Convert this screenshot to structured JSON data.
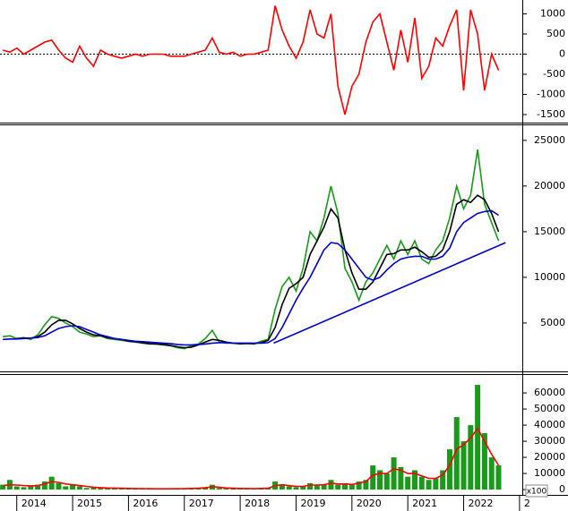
{
  "chart_data": [
    {
      "type": "line",
      "xlim": [
        2013.7,
        2023.05
      ],
      "ylim": [
        -1700,
        1300
      ],
      "yticks": [
        1000,
        500,
        0,
        -500,
        -1000,
        -1500
      ],
      "ref_line": 0,
      "x": [
        2013.75,
        2013.875,
        2014,
        2014.125,
        2014.25,
        2014.375,
        2014.5,
        2014.625,
        2014.75,
        2014.875,
        2015,
        2015.125,
        2015.25,
        2015.375,
        2015.5,
        2015.625,
        2015.75,
        2015.875,
        2016,
        2016.125,
        2016.25,
        2016.375,
        2016.5,
        2016.625,
        2016.75,
        2016.875,
        2017,
        2017.125,
        2017.25,
        2017.375,
        2017.5,
        2017.625,
        2017.75,
        2017.875,
        2018,
        2018.125,
        2018.25,
        2018.375,
        2018.5,
        2018.625,
        2018.75,
        2018.875,
        2019,
        2019.125,
        2019.25,
        2019.375,
        2019.5,
        2019.625,
        2019.75,
        2019.875,
        2020,
        2020.125,
        2020.25,
        2020.375,
        2020.5,
        2020.625,
        2020.75,
        2020.875,
        2021,
        2021.125,
        2021.25,
        2021.375,
        2021.5,
        2021.625,
        2021.75,
        2021.875,
        2022,
        2022.125,
        2022.25,
        2022.375,
        2022.5,
        2022.625
      ],
      "series": [
        {
          "color": "#ff0000",
          "values": [
            100,
            50,
            150,
            0,
            100,
            200,
            300,
            350,
            100,
            -100,
            -200,
            200,
            -100,
            -300,
            100,
            0,
            -50,
            -100,
            -50,
            0,
            -50,
            0,
            0,
            0,
            -50,
            -50,
            -50,
            0,
            50,
            100,
            400,
            50,
            0,
            50,
            -50,
            0,
            0,
            50,
            100,
            1200,
            600,
            200,
            -100,
            300,
            1100,
            500,
            400,
            1000,
            -800,
            -1500,
            -800,
            -500,
            300,
            800,
            1000,
            300,
            -400,
            600,
            -200,
            900,
            -600,
            -300,
            400,
            200,
            700,
            1100,
            -900,
            1100,
            500,
            -900,
            0,
            -400
          ]
        }
      ]
    },
    {
      "type": "line",
      "xlim": [
        2013.7,
        2023.05
      ],
      "ylim": [
        -300,
        26750
      ],
      "yticks": [
        5000,
        10000,
        15000,
        20000,
        25000
      ],
      "x": [
        2013.75,
        2013.875,
        2014,
        2014.125,
        2014.25,
        2014.375,
        2014.5,
        2014.625,
        2014.75,
        2014.875,
        2015,
        2015.125,
        2015.25,
        2015.375,
        2015.5,
        2015.625,
        2015.75,
        2015.875,
        2016,
        2016.125,
        2016.25,
        2016.375,
        2016.5,
        2016.625,
        2016.75,
        2016.875,
        2017,
        2017.125,
        2017.25,
        2017.375,
        2017.5,
        2017.625,
        2017.75,
        2017.875,
        2018,
        2018.125,
        2018.25,
        2018.375,
        2018.5,
        2018.625,
        2018.75,
        2018.875,
        2019,
        2019.125,
        2019.25,
        2019.375,
        2019.5,
        2019.625,
        2019.75,
        2019.875,
        2020,
        2020.125,
        2020.25,
        2020.375,
        2020.5,
        2020.625,
        2020.75,
        2020.875,
        2021,
        2021.125,
        2021.25,
        2021.375,
        2021.5,
        2021.625,
        2021.75,
        2021.875,
        2022,
        2022.125,
        2022.25,
        2022.375,
        2022.5,
        2022.625
      ],
      "series": [
        {
          "color": "#1a9a1a",
          "values": [
            3500,
            3600,
            3300,
            3400,
            3200,
            3700,
            4800,
            5700,
            5500,
            5000,
            4600,
            4000,
            3800,
            3500,
            3600,
            3300,
            3200,
            3100,
            3000,
            2900,
            2800,
            2700,
            2700,
            2600,
            2500,
            2300,
            2200,
            2500,
            2700,
            3300,
            4200,
            2900,
            2800,
            2800,
            2700,
            2800,
            2700,
            3000,
            3200,
            6500,
            9000,
            10000,
            8500,
            11000,
            15000,
            14000,
            16500,
            20000,
            17000,
            11000,
            9500,
            7500,
            9500,
            10500,
            12000,
            13500,
            12000,
            14000,
            12500,
            14000,
            12000,
            11500,
            13000,
            14000,
            16500,
            20000,
            17500,
            19000,
            24000,
            18000,
            16000,
            14000
          ]
        },
        {
          "color": "#000000",
          "values": [
            null,
            null,
            3300,
            3350,
            3350,
            3500,
            4000,
            4800,
            5300,
            5300,
            4900,
            4400,
            4000,
            3700,
            3600,
            3400,
            3300,
            3200,
            3000,
            2950,
            2850,
            2750,
            2700,
            2650,
            2550,
            2400,
            2300,
            2350,
            2600,
            2900,
            3200,
            3100,
            2900,
            2800,
            2750,
            2750,
            2750,
            2850,
            3100,
            4500,
            7000,
            8800,
            9300,
            10000,
            12500,
            14000,
            15500,
            17500,
            16500,
            13000,
            10500,
            8700,
            8700,
            9500,
            11000,
            12500,
            12600,
            13000,
            13000,
            13300,
            12800,
            12200,
            12300,
            13000,
            15000,
            18000,
            18500,
            18200,
            19000,
            18500,
            17000,
            15000
          ]
        },
        {
          "color": "#0000cc",
          "values": [
            3200,
            3250,
            3250,
            3300,
            3350,
            3400,
            3600,
            4000,
            4400,
            4600,
            4700,
            4600,
            4300,
            4000,
            3700,
            3500,
            3300,
            3200,
            3100,
            3000,
            2950,
            2900,
            2850,
            2800,
            2750,
            2650,
            2600,
            2600,
            2650,
            2700,
            2800,
            2850,
            2850,
            2800,
            2800,
            2800,
            2800,
            2800,
            2850,
            3300,
            4500,
            6000,
            7500,
            8800,
            10000,
            11500,
            13000,
            13800,
            13700,
            13000,
            12000,
            11000,
            10000,
            9700,
            10000,
            10800,
            11500,
            12000,
            12200,
            12300,
            12300,
            12000,
            12000,
            12300,
            13200,
            15000,
            16000,
            16500,
            17000,
            17200,
            17300,
            16800
          ]
        },
        {
          "color": "#0000cc",
          "x": [
            2018.6,
            2022.75
          ],
          "values": [
            2800,
            13800
          ]
        }
      ]
    },
    {
      "type": "bar",
      "xlim": [
        2013.7,
        2023.05
      ],
      "ylim": [
        -3300,
        71700
      ],
      "yticks": [
        0,
        10000,
        20000,
        30000,
        40000,
        50000,
        60000
      ],
      "unit_label": "x100",
      "xticks": [
        2014,
        2015,
        2016,
        2017,
        2018,
        2019,
        2020,
        2021,
        2022,
        {
          "value": 2023,
          "label": "2"
        }
      ],
      "x": [
        2013.75,
        2013.875,
        2014,
        2014.125,
        2014.25,
        2014.375,
        2014.5,
        2014.625,
        2014.75,
        2014.875,
        2015,
        2015.125,
        2015.25,
        2015.375,
        2015.5,
        2015.625,
        2015.75,
        2015.875,
        2016,
        2016.125,
        2016.25,
        2016.375,
        2016.5,
        2016.625,
        2016.75,
        2016.875,
        2017,
        2017.125,
        2017.25,
        2017.375,
        2017.5,
        2017.625,
        2017.75,
        2017.875,
        2018,
        2018.125,
        2018.25,
        2018.375,
        2018.5,
        2018.625,
        2018.75,
        2018.875,
        2019,
        2019.125,
        2019.25,
        2019.375,
        2019.5,
        2019.625,
        2019.75,
        2019.875,
        2020,
        2020.125,
        2020.25,
        2020.375,
        2020.5,
        2020.625,
        2020.75,
        2020.875,
        2021,
        2021.125,
        2021.25,
        2021.375,
        2021.5,
        2021.625,
        2021.75,
        2021.875,
        2022,
        2022.125,
        2022.25,
        2022.375,
        2022.5,
        2022.625
      ],
      "series": [
        {
          "type": "bar",
          "color": "#1a9a1a",
          "values": [
            3000,
            6000,
            2000,
            1500,
            2000,
            3000,
            5000,
            8000,
            4000,
            2000,
            3000,
            2000,
            1000,
            1500,
            1000,
            800,
            700,
            700,
            600,
            600,
            500,
            500,
            500,
            500,
            500,
            600,
            700,
            800,
            1000,
            1500,
            3000,
            1000,
            700,
            600,
            600,
            600,
            600,
            800,
            1000,
            5000,
            3000,
            2000,
            1500,
            2000,
            4000,
            2500,
            3000,
            6000,
            3000,
            4000,
            3000,
            5000,
            6000,
            15000,
            12000,
            10000,
            20000,
            14000,
            8000,
            12000,
            8000,
            6000,
            7000,
            12000,
            25000,
            45000,
            30000,
            40000,
            65000,
            35000,
            20000,
            15000
          ]
        },
        {
          "type": "line",
          "color": "#ff0000",
          "values": [
            2500,
            3000,
            2800,
            2500,
            2300,
            2500,
            3500,
            5000,
            4500,
            3500,
            3000,
            2500,
            2000,
            1500,
            1200,
            1000,
            900,
            800,
            700,
            650,
            600,
            550,
            500,
            500,
            500,
            550,
            600,
            700,
            800,
            1100,
            1800,
            1500,
            1000,
            800,
            700,
            650,
            600,
            700,
            800,
            2500,
            3000,
            2500,
            2000,
            2000,
            2800,
            2800,
            3000,
            4000,
            3500,
            3500,
            3200,
            4000,
            5000,
            9000,
            10000,
            10000,
            13000,
            12000,
            10000,
            10000,
            8500,
            7000,
            7000,
            9000,
            15000,
            25000,
            28000,
            32000,
            38000,
            30000,
            22000,
            15000
          ]
        }
      ]
    }
  ]
}
